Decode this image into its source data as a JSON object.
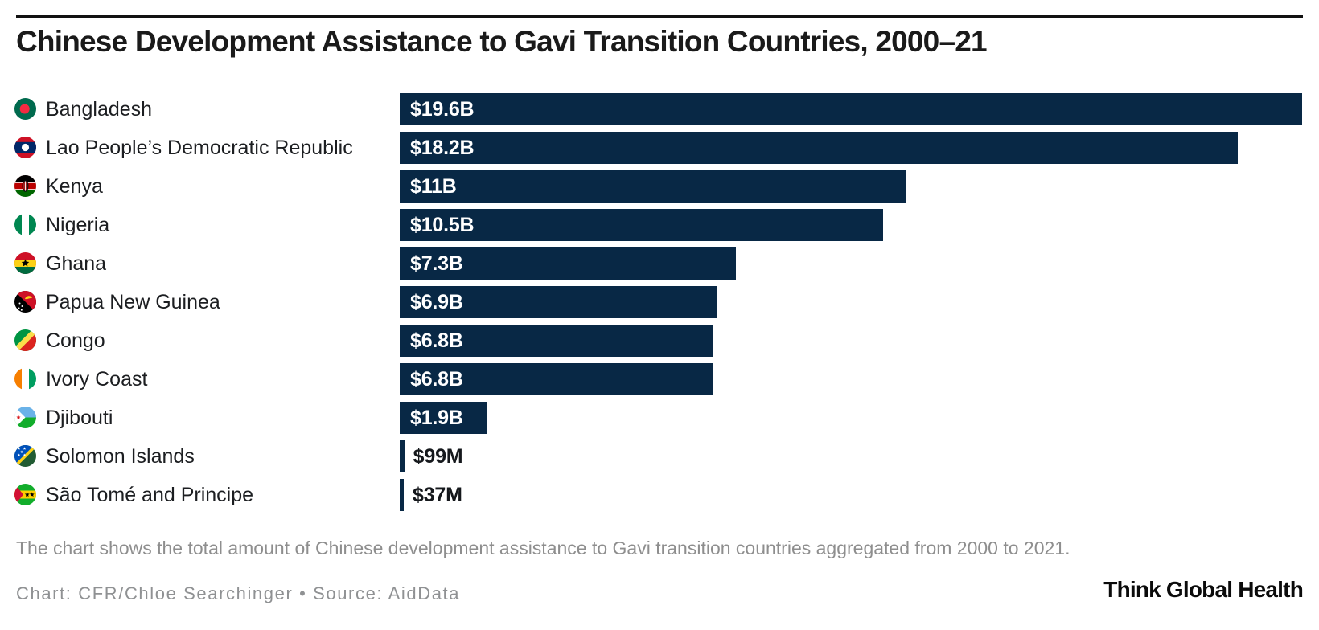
{
  "page": {
    "title": "Chinese Development Assistance to Gavi Transition Countries, 2000–21",
    "caption": "The chart shows the total amount of Chinese development assistance to Gavi transition countries aggregated from 2000 to 2021.",
    "credit": "Chart: CFR/Chloe Searchinger • Source: AidData",
    "logo": "Think Global Health"
  },
  "colors": {
    "bar": "#082845",
    "rule": "#111111",
    "title_text": "#1a1a1a",
    "category_text": "#1c1e21",
    "value_inside_text": "#ffffff",
    "value_outside_text": "#15181c",
    "caption_text": "#8e8e8e",
    "credit_text": "#8f9193"
  },
  "chart_data": {
    "type": "bar",
    "orientation": "horizontal",
    "title": "Chinese Development Assistance to Gavi Transition Countries, 2000–21",
    "xlabel": "",
    "ylabel": "",
    "unit": "USD",
    "xlim_billion_usd": [
      0,
      19.6
    ],
    "grid": false,
    "legend": false,
    "categories": [
      "Bangladesh",
      "Lao People’s Democratic Republic",
      "Kenya",
      "Nigeria",
      "Ghana",
      "Papua New Guinea",
      "Congo",
      "Ivory Coast",
      "Djibouti",
      "Solomon Islands",
      "São Tomé and Principe"
    ],
    "values_billion_usd": [
      19.6,
      18.2,
      11,
      10.5,
      7.3,
      6.9,
      6.8,
      6.8,
      1.9,
      0.099,
      0.037
    ],
    "value_labels": [
      "$19.6B",
      "$18.2B",
      "$11B",
      "$10.5B",
      "$7.3B",
      "$6.9B",
      "$6.8B",
      "$6.8B",
      "$1.9B",
      "$99M",
      "$37M"
    ],
    "value_label_position": [
      "inside",
      "inside",
      "inside",
      "inside",
      "inside",
      "inside",
      "inside",
      "inside",
      "inside",
      "outside",
      "outside"
    ],
    "flag_icons": [
      "flag-bangladesh-icon",
      "flag-laos-icon",
      "flag-kenya-icon",
      "flag-nigeria-icon",
      "flag-ghana-icon",
      "flag-papua-new-guinea-icon",
      "flag-congo-icon",
      "flag-ivory-coast-icon",
      "flag-djibouti-icon",
      "flag-solomon-islands-icon",
      "flag-sao-tome-and-principe-icon"
    ]
  }
}
